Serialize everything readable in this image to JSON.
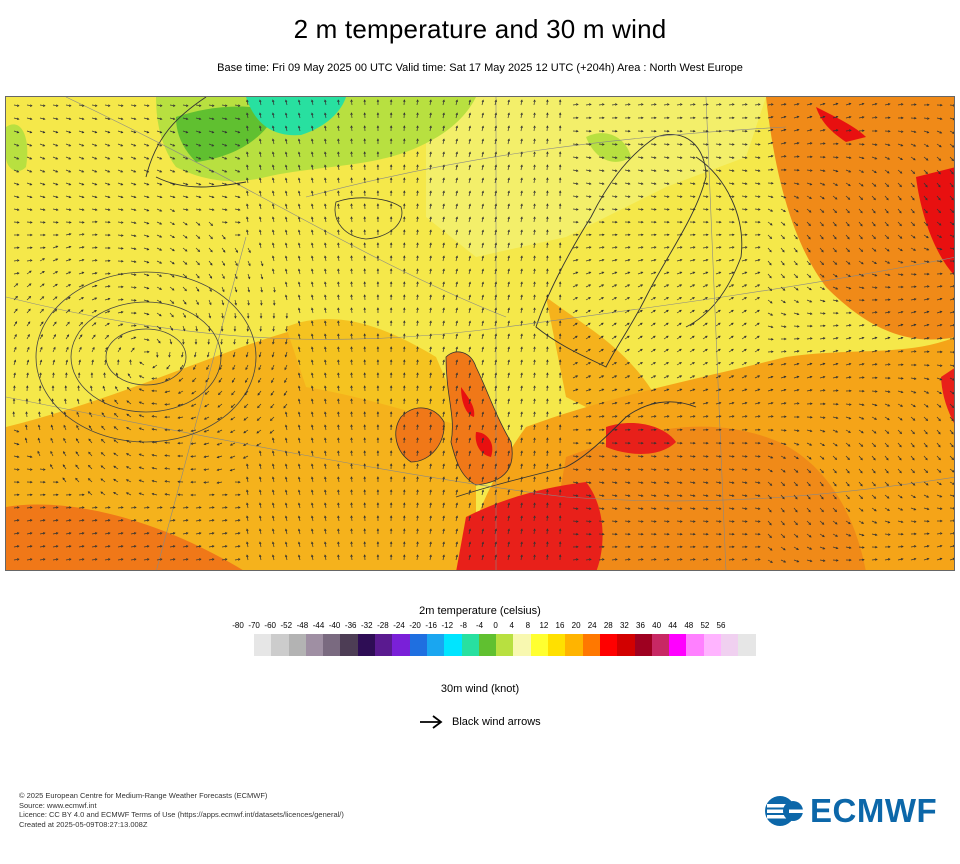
{
  "title": "2 m temperature and 30 m wind",
  "subtitle": "Base time: Fri 09 May 2025 00 UTC Valid time: Sat 17 May 2025 12 UTC (+204h) Area : North West Europe",
  "legend": {
    "title": "2m temperature (celsius)",
    "ticks": [
      "-80",
      "-70",
      "-60",
      "-52",
      "-48",
      "-44",
      "-40",
      "-36",
      "-32",
      "-28",
      "-24",
      "-20",
      "-16",
      "-12",
      "-8",
      "-4",
      "0",
      "4",
      "8",
      "12",
      "16",
      "20",
      "24",
      "28",
      "32",
      "36",
      "40",
      "44",
      "48",
      "52",
      "56"
    ],
    "colors": [
      "#e6e6e6",
      "#cccccc",
      "#b3b3b3",
      "#9f8fa3",
      "#7a6a80",
      "#4d3d55",
      "#2e0d55",
      "#5a1a90",
      "#7a20d8",
      "#1f6fe0",
      "#1aa6f0",
      "#00e5ff",
      "#28e0a0",
      "#60c030",
      "#b8e040",
      "#f8f8b0",
      "#ffff30",
      "#ffe000",
      "#ffb400",
      "#ff7800",
      "#ff0000",
      "#d20000",
      "#9e0020",
      "#c82864",
      "#ff00ff",
      "#ff80ff",
      "#ffb4ff",
      "#f0d0f0",
      "#e6e6e6"
    ]
  },
  "wind": {
    "title": "30m wind (knot)",
    "key_label": "Black wind arrows"
  },
  "footer": {
    "line1": "© 2025 European Centre for Medium-Range Weather Forecasts (ECMWF)",
    "line2": "Source: www.ecmwf.int",
    "line3": "Licence: CC BY 4.0 and ECMWF Terms of Use (https://apps.ecmwf.int/datasets/licences/general/)",
    "line4": "Created at 2025-05-09T08:27:13.008Z"
  },
  "logo_text": "ECMWF",
  "icons": {
    "wind_key": "arrow-right-icon",
    "logo": "ecmwf-logo-icon"
  }
}
